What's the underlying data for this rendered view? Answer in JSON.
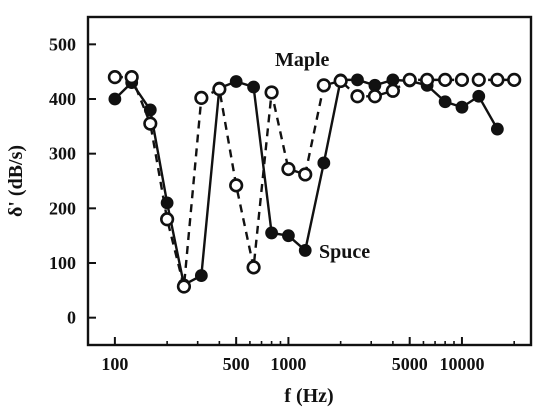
{
  "chart_data": {
    "type": "line",
    "xlabel": "f (Hz)",
    "ylabel": "δ' (dB/s)",
    "x_scale": "log",
    "xlim": [
      70,
      25000
    ],
    "ylim": [
      -50,
      550
    ],
    "grid": false,
    "x_ticks": [
      {
        "value": 100,
        "label": "100"
      },
      {
        "value": 500,
        "label": "500"
      },
      {
        "value": 1000,
        "label": "1000"
      },
      {
        "value": 5000,
        "label": "5000"
      },
      {
        "value": 10000,
        "label": "10000"
      }
    ],
    "y_ticks": [
      {
        "value": 0,
        "label": "0"
      },
      {
        "value": 100,
        "label": "100"
      },
      {
        "value": 200,
        "label": "200"
      },
      {
        "value": 300,
        "label": "300"
      },
      {
        "value": 400,
        "label": "400"
      },
      {
        "value": 500,
        "label": "500"
      }
    ],
    "series": [
      {
        "name": "Spuce",
        "style": "solid",
        "marker": "filled-circle",
        "color": "#111111",
        "x": [
          100,
          125,
          160,
          200,
          250,
          315,
          400,
          500,
          630,
          800,
          1000,
          1250,
          1600,
          2000,
          2500,
          3150,
          4000,
          5000,
          6300,
          8000,
          10000,
          12500,
          16000
        ],
        "y": [
          400,
          430,
          380,
          210,
          60,
          77,
          420,
          432,
          422,
          155,
          150,
          123,
          283,
          435,
          435,
          425,
          435,
          433,
          425,
          395,
          385,
          405,
          345
        ]
      },
      {
        "name": "Maple",
        "style": "dashed",
        "marker": "open-circle",
        "color": "#111111",
        "x": [
          100,
          125,
          160,
          200,
          250,
          315,
          400,
          500,
          630,
          800,
          1000,
          1250,
          1600,
          2000,
          2500,
          3150,
          4000,
          5000,
          6300,
          8000,
          10000,
          12500,
          16000,
          20000
        ],
        "y": [
          440,
          440,
          355,
          180,
          57,
          402,
          418,
          242,
          92,
          412,
          272,
          262,
          425,
          433,
          405,
          405,
          415,
          435,
          435,
          435,
          435,
          435,
          435,
          435
        ]
      }
    ]
  }
}
